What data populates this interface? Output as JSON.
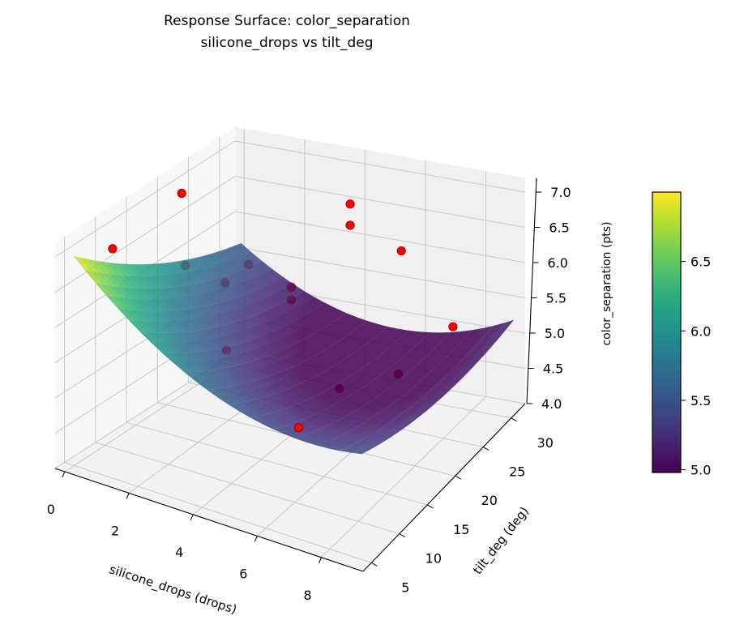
{
  "chart_data": {
    "type": "surface3d",
    "title": "Response Surface: color_separation",
    "subtitle": "silicone_drops vs tilt_deg",
    "xlabel": "silicone_drops (drops)",
    "ylabel": "tilt_deg (deg)",
    "zlabel": "color_separation (pts)",
    "xlim": [
      -0.3,
      9.3
    ],
    "ylim": [
      3.5,
      32.5
    ],
    "zlim": [
      4.0,
      7.2
    ],
    "x_ticks": [
      "0",
      "2",
      "4",
      "6",
      "8"
    ],
    "x_tick_values": [
      0,
      2,
      4,
      6,
      8
    ],
    "y_ticks": [
      "5",
      "10",
      "15",
      "20",
      "25",
      "30"
    ],
    "y_tick_values": [
      5,
      10,
      15,
      20,
      25,
      30
    ],
    "z_ticks": [
      "4.0",
      "4.5",
      "5.0",
      "5.5",
      "6.0",
      "6.5",
      "7.0"
    ],
    "z_tick_values": [
      4.0,
      4.5,
      5.0,
      5.5,
      6.0,
      6.5,
      7.0
    ],
    "surface": {
      "x_range": [
        0,
        9
      ],
      "y_range": [
        5,
        32
      ],
      "corner_values": {
        "x0_y0": 6.97,
        "x0_y1": 5.6,
        "x1_y0": 5.5,
        "x1_y1": 5.2
      },
      "curvature_x": 0.6,
      "curvature_y": 0.2,
      "colormap": "viridis",
      "alpha": 0.85
    },
    "points": [
      {
        "x": 0.65,
        "y": 7.9,
        "z": 7.0,
        "occluded": false
      },
      {
        "x": 0.6,
        "y": 19.4,
        "z": 7.1,
        "occluded": false
      },
      {
        "x": 4.0,
        "y": 30.0,
        "z": 6.6,
        "occluded": false
      },
      {
        "x": 4.0,
        "y": 30.0,
        "z": 6.3,
        "occluded": false
      },
      {
        "x": 5.3,
        "y": 32.0,
        "z": 5.9,
        "occluded": false
      },
      {
        "x": 4.8,
        "y": 17.1,
        "z": 4.4,
        "occluded": false
      },
      {
        "x": 0.5,
        "y": 20.5,
        "z": 6.0,
        "occluded": true
      },
      {
        "x": 1.8,
        "y": 20.4,
        "z": 5.9,
        "occluded": true
      },
      {
        "x": 1.0,
        "y": 28.3,
        "z": 5.6,
        "occluded": true
      },
      {
        "x": 2.4,
        "y": 28.3,
        "z": 5.4,
        "occluded": true
      },
      {
        "x": 2.6,
        "y": 27.3,
        "z": 5.3,
        "occluded": true
      },
      {
        "x": 3.5,
        "y": 11.8,
        "z": 5.7,
        "occluded": true
      },
      {
        "x": 5.9,
        "y": 18.2,
        "z": 5.0,
        "occluded": true
      },
      {
        "x": 6.8,
        "y": 23.6,
        "z": 4.9,
        "occluded": true
      },
      {
        "x": 7.1,
        "y": 31.5,
        "z": 5.0,
        "occluded": true
      }
    ],
    "point_color": "#ff0000",
    "colorbar": {
      "range": [
        4.98,
        7.0
      ],
      "ticks": [
        "5.0",
        "5.5",
        "6.0",
        "6.5"
      ],
      "tick_values": [
        5.0,
        5.5,
        6.0,
        6.5
      ]
    }
  }
}
